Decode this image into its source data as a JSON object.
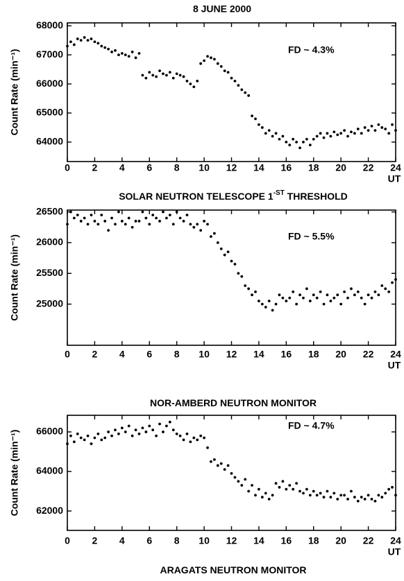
{
  "chart_data": [
    {
      "type": "scatter",
      "title": "8 JUNE 2000",
      "caption": [
        "SOLAR NEUTRON TELESCOPE 1",
        "-ST",
        " THRESHOLD"
      ],
      "ylabel": "Count Rate (min⁻¹)",
      "xlabel": "UT",
      "annotation": "FD ~ 4.3%",
      "color": "#000000",
      "xlim": [
        0,
        24
      ],
      "xticks": [
        0,
        2,
        4,
        6,
        8,
        10,
        12,
        14,
        16,
        18,
        20,
        22,
        24
      ],
      "ylim": [
        63330,
        68100
      ],
      "yticks": [
        64000,
        65000,
        66000,
        67000,
        68000
      ],
      "x": [
        0,
        0.25,
        0.5,
        0.75,
        1,
        1.25,
        1.5,
        1.75,
        2,
        2.25,
        2.5,
        2.75,
        3,
        3.25,
        3.5,
        3.75,
        4,
        4.25,
        4.5,
        4.75,
        5,
        5.25,
        5.5,
        5.75,
        6,
        6.25,
        6.5,
        6.75,
        7,
        7.25,
        7.5,
        7.75,
        8,
        8.25,
        8.5,
        8.75,
        9,
        9.25,
        9.5,
        9.75,
        10,
        10.25,
        10.5,
        10.75,
        11,
        11.25,
        11.5,
        11.75,
        12,
        12.25,
        12.5,
        12.75,
        13,
        13.25,
        13.5,
        13.75,
        14,
        14.25,
        14.5,
        14.75,
        15,
        15.25,
        15.5,
        15.75,
        16,
        16.25,
        16.5,
        16.75,
        17,
        17.25,
        17.5,
        17.75,
        18,
        18.25,
        18.5,
        18.75,
        19,
        19.25,
        19.5,
        19.75,
        20,
        20.25,
        20.5,
        20.75,
        21,
        21.25,
        21.5,
        21.75,
        22,
        22.25,
        22.5,
        22.75,
        23,
        23.25,
        23.5,
        23.75,
        24
      ],
      "y": [
        67300,
        67450,
        67350,
        67550,
        67500,
        67600,
        67500,
        67550,
        67450,
        67400,
        67300,
        67250,
        67200,
        67100,
        67150,
        67000,
        67050,
        67000,
        66950,
        67100,
        66900,
        67050,
        66300,
        66200,
        66400,
        66300,
        66250,
        66450,
        66350,
        66300,
        66400,
        66200,
        66350,
        66300,
        66250,
        66100,
        66000,
        65900,
        66100,
        66700,
        66800,
        66950,
        66900,
        66850,
        66700,
        66600,
        66450,
        66400,
        66200,
        66100,
        65950,
        65800,
        65700,
        65600,
        64900,
        64800,
        64600,
        64500,
        64300,
        64400,
        64200,
        64300,
        64100,
        64200,
        64000,
        63900,
        64100,
        64000,
        63800,
        64000,
        64100,
        63900,
        64100,
        64200,
        64300,
        64150,
        64300,
        64200,
        64350,
        64250,
        64300,
        64400,
        64200,
        64350,
        64300,
        64450,
        64300,
        64500,
        64400,
        64550,
        64400,
        64600,
        64500,
        64450,
        64300,
        64600,
        64400
      ]
    },
    {
      "type": "scatter",
      "caption": [
        "NOR-AMBERD NEUTRON MONITOR"
      ],
      "ylabel": "Count Rate (min⁻¹)",
      "xlabel": "UT",
      "annotation": "FD ~ 5.5%",
      "color": "#000000",
      "xlim": [
        0,
        24
      ],
      "xticks": [
        0,
        2,
        4,
        6,
        8,
        10,
        12,
        14,
        16,
        18,
        20,
        22,
        24
      ],
      "ylim": [
        24330,
        26530
      ],
      "yticks": [
        25000,
        25500,
        26000,
        26500
      ],
      "x": [
        0,
        0.25,
        0.5,
        0.75,
        1,
        1.25,
        1.5,
        1.75,
        2,
        2.25,
        2.5,
        2.75,
        3,
        3.25,
        3.5,
        3.75,
        4,
        4.25,
        4.5,
        4.75,
        5,
        5.25,
        5.5,
        5.75,
        6,
        6.25,
        6.5,
        6.75,
        7,
        7.25,
        7.5,
        7.75,
        8,
        8.25,
        8.5,
        8.75,
        9,
        9.25,
        9.5,
        9.75,
        10,
        10.25,
        10.5,
        10.75,
        11,
        11.25,
        11.5,
        11.75,
        12,
        12.25,
        12.5,
        12.75,
        13,
        13.25,
        13.5,
        13.75,
        14,
        14.25,
        14.5,
        14.75,
        15,
        15.25,
        15.5,
        15.75,
        16,
        16.25,
        16.5,
        16.75,
        17,
        17.25,
        17.5,
        17.75,
        18,
        18.25,
        18.5,
        18.75,
        19,
        19.25,
        19.5,
        19.75,
        20,
        20.25,
        20.5,
        20.75,
        21,
        21.25,
        21.5,
        21.75,
        22,
        22.25,
        22.5,
        22.75,
        23,
        23.25,
        23.5,
        23.75,
        24
      ],
      "y": [
        26300,
        26500,
        26400,
        26450,
        26350,
        26400,
        26300,
        26450,
        26350,
        26300,
        26450,
        26350,
        26200,
        26400,
        26300,
        26500,
        26350,
        26300,
        26400,
        26250,
        26350,
        26350,
        26500,
        26400,
        26300,
        26450,
        26400,
        26350,
        26500,
        26400,
        26450,
        26300,
        26500,
        26400,
        26350,
        26450,
        26300,
        26250,
        26300,
        26200,
        26350,
        26300,
        26100,
        26150,
        26000,
        25900,
        25800,
        25850,
        25700,
        25650,
        25500,
        25450,
        25300,
        25250,
        25150,
        25200,
        25050,
        25000,
        24950,
        25050,
        24900,
        25000,
        25150,
        25100,
        25050,
        25100,
        25200,
        25000,
        25150,
        25100,
        25250,
        25050,
        25150,
        25100,
        25200,
        25000,
        25150,
        25050,
        25100,
        25150,
        25000,
        25200,
        25100,
        25250,
        25150,
        25200,
        25100,
        25000,
        25150,
        25100,
        25200,
        25150,
        25300,
        25250,
        25200,
        25350,
        25400
      ]
    },
    {
      "type": "scatter",
      "caption": [
        "ARAGATS NEUTRON MONITOR"
      ],
      "ylabel": "Count Rate (min⁻¹)",
      "xlabel": "UT",
      "annotation": "FD ~ 4.7%",
      "color": "#000000",
      "xlim": [
        0,
        24
      ],
      "xticks": [
        0,
        2,
        4,
        6,
        8,
        10,
        12,
        14,
        16,
        18,
        20,
        22,
        24
      ],
      "ylim": [
        61020,
        66840
      ],
      "yticks": [
        62000,
        64000,
        66000
      ],
      "x": [
        0,
        0.25,
        0.5,
        0.75,
        1,
        1.25,
        1.5,
        1.75,
        2,
        2.25,
        2.5,
        2.75,
        3,
        3.25,
        3.5,
        3.75,
        4,
        4.25,
        4.5,
        4.75,
        5,
        5.25,
        5.5,
        5.75,
        6,
        6.25,
        6.5,
        6.75,
        7,
        7.25,
        7.5,
        7.75,
        8,
        8.25,
        8.5,
        8.75,
        9,
        9.25,
        9.5,
        9.75,
        10,
        10.25,
        10.5,
        10.75,
        11,
        11.25,
        11.5,
        11.75,
        12,
        12.25,
        12.5,
        12.75,
        13,
        13.25,
        13.5,
        13.75,
        14,
        14.25,
        14.5,
        14.75,
        15,
        15.25,
        15.5,
        15.75,
        16,
        16.25,
        16.5,
        16.75,
        17,
        17.25,
        17.5,
        17.75,
        18,
        18.25,
        18.5,
        18.75,
        19,
        19.25,
        19.5,
        19.75,
        20,
        20.25,
        20.5,
        20.75,
        21,
        21.25,
        21.5,
        21.75,
        22,
        22.25,
        22.5,
        22.75,
        23,
        23.25,
        23.5,
        23.75,
        24
      ],
      "y": [
        65400,
        65800,
        65500,
        65900,
        65700,
        65600,
        65800,
        65400,
        65700,
        65900,
        65600,
        65700,
        66000,
        65800,
        66100,
        65900,
        66200,
        66000,
        66300,
        65800,
        66100,
        65900,
        66200,
        66000,
        66300,
        66100,
        65800,
        66400,
        66000,
        66300,
        66500,
        66100,
        65900,
        65800,
        65600,
        65900,
        65500,
        65700,
        65600,
        65800,
        65700,
        65200,
        64500,
        64600,
        64300,
        64400,
        64100,
        64300,
        63900,
        63700,
        63500,
        63300,
        63600,
        63000,
        63300,
        62800,
        63100,
        62700,
        62900,
        62600,
        62800,
        63400,
        63200,
        63500,
        63100,
        63300,
        63100,
        63400,
        63000,
        62900,
        63100,
        62800,
        63000,
        62800,
        62900,
        62700,
        63000,
        62700,
        62900,
        62600,
        62800,
        62800,
        62600,
        63000,
        62700,
        62500,
        62700,
        62600,
        62800,
        62600,
        62500,
        62800,
        62700,
        62900,
        63100,
        63200,
        62800
      ]
    }
  ]
}
